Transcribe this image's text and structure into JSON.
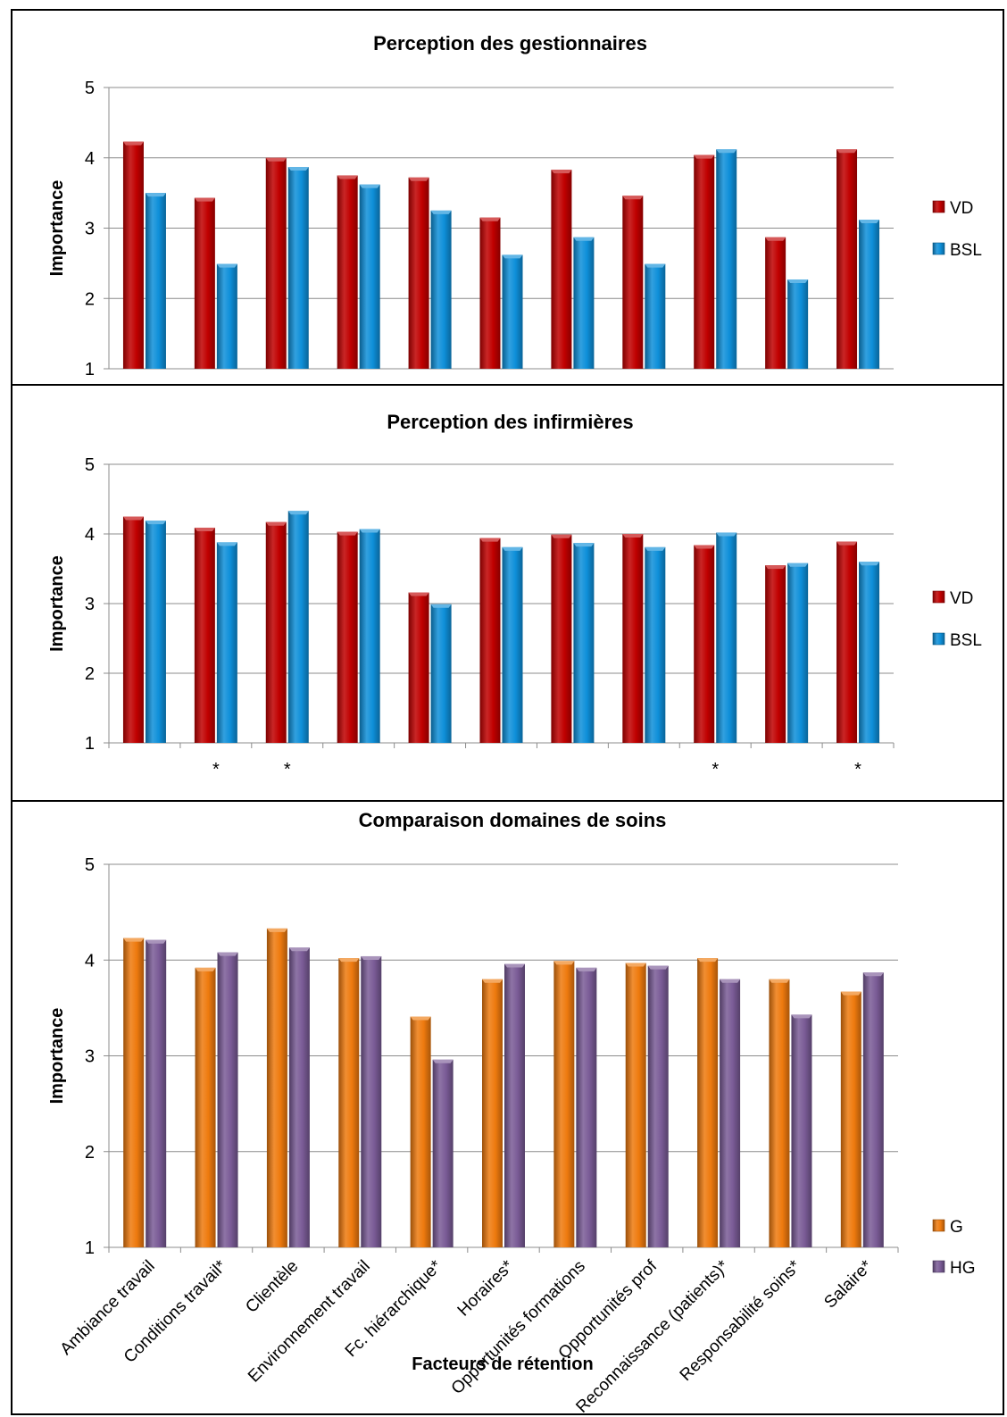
{
  "chart_data": [
    {
      "type": "bar",
      "title": "Perception des gestionnaires",
      "ylabel": "Importance",
      "xlabel": "",
      "ylim": [
        1,
        5
      ],
      "yticks": [
        "1",
        "2",
        "3",
        "4",
        "5"
      ],
      "grid": true,
      "legend_position": "right",
      "categories": [
        "Ambiance travail",
        "Conditions travail*",
        "Clientèle",
        "Environnement travail",
        "Fc. hiérarchique*",
        "Horaires*",
        "Opportunités formations",
        "Opportunités prof",
        "Reconnaissance (patients)*",
        "Responsabilité soins*",
        "Salaire*"
      ],
      "series": [
        {
          "name": "VD",
          "color": "#C00000",
          "values": [
            4.23,
            3.43,
            4.0,
            3.75,
            3.72,
            3.15,
            3.83,
            3.46,
            4.04,
            2.87,
            4.12
          ]
        },
        {
          "name": "BSL",
          "color": "#0E8FD9",
          "values": [
            3.5,
            2.49,
            3.87,
            3.62,
            3.25,
            2.62,
            2.87,
            2.49,
            4.12,
            2.27,
            3.12
          ]
        }
      ],
      "markers": []
    },
    {
      "type": "bar",
      "title": "Perception des infirmières",
      "ylabel": "Importance",
      "xlabel": "",
      "ylim": [
        1,
        5
      ],
      "yticks": [
        "1",
        "2",
        "3",
        "4",
        "5"
      ],
      "grid": true,
      "legend_position": "right",
      "categories": [
        "Ambiance travail",
        "Conditions travail*",
        "Clientèle",
        "Environnement travail",
        "Fc. hiérarchique*",
        "Horaires*",
        "Opportunités formations",
        "Opportunités prof",
        "Reconnaissance (patients)*",
        "Responsabilité soins*",
        "Salaire*"
      ],
      "series": [
        {
          "name": "VD",
          "color": "#C00000",
          "values": [
            4.25,
            4.09,
            4.17,
            4.03,
            3.16,
            3.94,
            3.99,
            4.0,
            3.84,
            3.55,
            3.89
          ]
        },
        {
          "name": "BSL",
          "color": "#0E8FD9",
          "values": [
            4.19,
            3.88,
            4.33,
            4.07,
            2.99,
            3.81,
            3.87,
            3.81,
            4.02,
            3.58,
            3.6
          ]
        }
      ],
      "markers": [
        "",
        "*",
        "*",
        "",
        "",
        "",
        "",
        "",
        "*",
        "",
        "*"
      ]
    },
    {
      "type": "bar",
      "title": "Comparaison  domaines de soins",
      "ylabel": "Importance",
      "xlabel": "Facteurs de rétention",
      "ylim": [
        1,
        5
      ],
      "yticks": [
        "1",
        "2",
        "3",
        "4",
        "5"
      ],
      "grid": true,
      "legend_position": "bottom-right",
      "categories": [
        "Ambiance travail",
        "Conditions travail*",
        "Clientèle",
        "Environnement travail",
        "Fc. hiérarchique*",
        "Horaires*",
        "Opportunités formations",
        "Opportunités prof",
        "Reconnaissance (patients)*",
        "Responsabilité soins*",
        "Salaire*"
      ],
      "series": [
        {
          "name": "G",
          "color": "#EE7A0E",
          "values": [
            4.23,
            3.92,
            4.33,
            4.02,
            3.41,
            3.8,
            3.99,
            3.97,
            4.02,
            3.8,
            3.67
          ]
        },
        {
          "name": "HG",
          "color": "#7A5B96",
          "values": [
            4.21,
            4.08,
            4.13,
            4.04,
            2.96,
            3.96,
            3.92,
            3.94,
            3.8,
            3.43,
            3.87
          ]
        }
      ],
      "markers": []
    }
  ]
}
